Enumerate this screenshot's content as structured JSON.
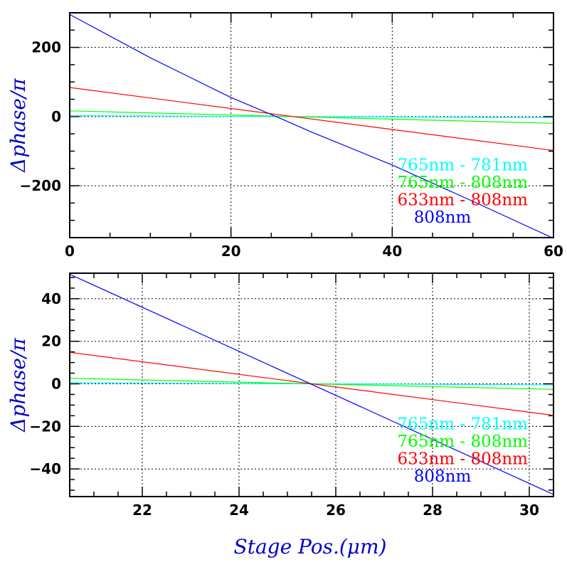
{
  "chart_data": [
    {
      "type": "line",
      "xlim": [
        0,
        60
      ],
      "ylim": [
        -350,
        300
      ],
      "xticks": [
        0,
        20,
        40,
        60
      ],
      "yticks": [
        200,
        0,
        -200
      ],
      "x_minor_step": 5,
      "y_minor_step": 50,
      "grid": true,
      "ylabel": "Δphase/π",
      "xlabel": "",
      "legend_position": "lower-right",
      "series": [
        {
          "name": "765nm - 781nm",
          "color": "#00ffff",
          "x": [
            0,
            60
          ],
          "y": [
            2.6,
            -3.4
          ]
        },
        {
          "name": "765nm - 808nm",
          "color": "#00ff00",
          "x": [
            0,
            60
          ],
          "y": [
            16.5,
            -19.5
          ]
        },
        {
          "name": "633nm - 808nm",
          "color": "#ff0000",
          "x": [
            0,
            60
          ],
          "y": [
            84,
            -98
          ]
        },
        {
          "name": "808nm",
          "color": "#0000ff",
          "x": [
            0,
            10,
            20,
            25.6,
            30,
            40,
            50,
            60
          ],
          "y": [
            295,
            170,
            55,
            0,
            -45,
            -140,
            -245,
            -352
          ]
        }
      ]
    },
    {
      "type": "line",
      "xlim": [
        20.5,
        30.5
      ],
      "ylim": [
        -53,
        52
      ],
      "xticks": [
        22,
        24,
        26,
        28,
        30
      ],
      "yticks": [
        40,
        20,
        0,
        -20,
        -40
      ],
      "x_minor_step": 0.5,
      "y_minor_step": 5,
      "grid": true,
      "ylabel": "Δphase/π",
      "xlabel": "Stage Pos.(μm)",
      "legend_position": "lower-right",
      "series": [
        {
          "name": "765nm - 781nm",
          "color": "#00ffff",
          "x": [
            20.5,
            30.5
          ],
          "y": [
            0.5,
            -0.5
          ]
        },
        {
          "name": "765nm - 808nm",
          "color": "#00ff00",
          "x": [
            20.5,
            30.5
          ],
          "y": [
            2.6,
            -2.6
          ]
        },
        {
          "name": "633nm - 808nm",
          "color": "#ff0000",
          "x": [
            20.5,
            30.5
          ],
          "y": [
            14.8,
            -14.8
          ]
        },
        {
          "name": "808nm",
          "color": "#0000ff",
          "x": [
            20.5,
            30.5
          ],
          "y": [
            51.5,
            -52
          ]
        }
      ]
    }
  ]
}
